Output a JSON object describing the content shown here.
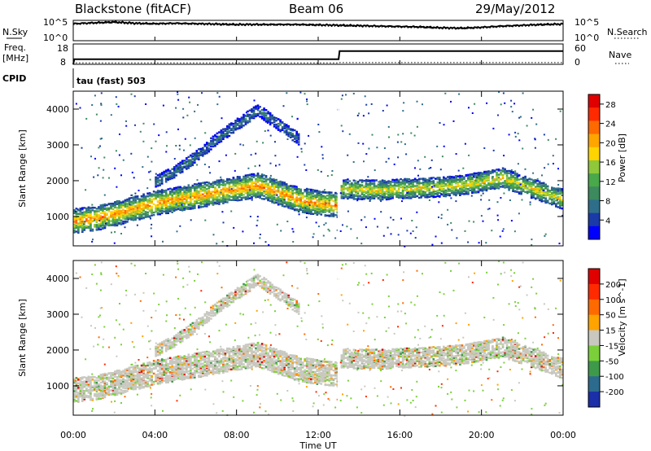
{
  "header": {
    "station": "Blackstone (fitACF)",
    "beam": "Beam 06",
    "date": "29/May/2012"
  },
  "nsky_panel": {
    "left_label": "N.Sky",
    "right_label": "N.Search",
    "tick_top": "10^5",
    "tick_bottom": "10^0"
  },
  "freq_panel": {
    "left_label": "Freq.",
    "left_unit": "[MHz]",
    "right_label": "Nave",
    "left_ticks": [
      "18",
      "8"
    ],
    "right_ticks": [
      "60",
      "0"
    ]
  },
  "cpid": {
    "label": "CPID",
    "program": "tau (fast) 503"
  },
  "chart_data": [
    {
      "type": "line",
      "name": "noise-panel",
      "x": [
        0,
        1,
        2,
        3,
        4,
        5,
        6,
        7,
        8,
        9,
        10,
        11,
        12,
        13,
        14,
        15,
        16,
        17,
        18,
        19,
        20,
        21,
        22,
        23,
        24
      ],
      "series": [
        {
          "values": [
            4.2,
            4.4,
            4.6,
            4.3,
            4.2,
            4.3,
            4.2,
            4.1,
            4.0,
            4.0,
            4.0,
            4.0,
            3.9,
            3.8,
            3.7,
            3.6,
            3.5,
            3.4,
            3.2,
            3.1,
            3.3,
            3.6,
            3.8,
            4.0,
            4.1
          ]
        }
      ],
      "ylim": [
        0,
        5
      ],
      "yscale": "log"
    },
    {
      "type": "line",
      "name": "frequency-panel",
      "x": [
        0,
        0.05,
        13.0,
        13.05,
        24
      ],
      "series": [
        {
          "values": [
            8,
            10.5,
            10.5,
            14.5,
            14.5
          ]
        },
        {
          "values": [
            0,
            4,
            4,
            5,
            5
          ]
        }
      ],
      "ylim": [
        8,
        18
      ],
      "y2lim": [
        0,
        60
      ]
    },
    {
      "type": "heatmap",
      "name": "power",
      "xlabel": "",
      "ylabel": "Slant Range [km]",
      "xlim": [
        0,
        24
      ],
      "ylim": [
        180,
        4500
      ],
      "yticks": [
        1000,
        2000,
        3000,
        4000
      ],
      "colorbar": {
        "label": "Power [dB]",
        "ticks": [
          4,
          8,
          12,
          16,
          20,
          24,
          28
        ],
        "range": [
          0,
          30
        ],
        "colors": [
          "#0000ff",
          "#1a3aa8",
          "#2f6e8a",
          "#3c8a5e",
          "#49a84a",
          "#8fc83a",
          "#ffd400",
          "#ffa500",
          "#ff6a00",
          "#ff2a00",
          "#e00000"
        ]
      },
      "bands": [
        {
          "x": [
            0,
            1,
            2,
            3,
            4,
            5,
            6,
            7,
            8,
            9,
            10,
            11,
            12,
            12.9
          ],
          "y": [
            900,
            960,
            1100,
            1250,
            1400,
            1500,
            1600,
            1700,
            1800,
            1900,
            1700,
            1500,
            1400,
            1350
          ],
          "width": 320,
          "power": 22
        },
        {
          "x": [
            13.1,
            14,
            15,
            16,
            17,
            18,
            19,
            20,
            21,
            22,
            23,
            24
          ],
          "y": [
            1800,
            1780,
            1760,
            1800,
            1820,
            1850,
            1900,
            2000,
            2100,
            1900,
            1700,
            1500
          ],
          "width": 260,
          "power": 18
        },
        {
          "x": [
            4,
            5,
            6,
            7,
            8,
            9,
            10,
            11
          ],
          "y": [
            2000,
            2300,
            2700,
            3200,
            3600,
            4000,
            3600,
            3200
          ],
          "width": 150,
          "power": 8
        }
      ]
    },
    {
      "type": "heatmap",
      "name": "velocity",
      "xlabel": "Time UT",
      "ylabel": "Slant Range [km]",
      "xlim": [
        0,
        24
      ],
      "ylim": [
        180,
        4500
      ],
      "yticks": [
        1000,
        2000,
        3000,
        4000
      ],
      "xticks": [
        "00:00",
        "04:00",
        "08:00",
        "12:00",
        "16:00",
        "20:00",
        "00:00"
      ],
      "colorbar": {
        "label": "Velocity [m s^-1]",
        "ticks": [
          200,
          100,
          50,
          15,
          -15,
          -50,
          -100,
          -200
        ],
        "colors": [
          "#1b2fa8",
          "#2c6b8e",
          "#3e9a4a",
          "#7bd03a",
          "#c8c8c0",
          "#ffa300",
          "#ff6a00",
          "#ff2a00",
          "#e00000"
        ]
      }
    }
  ]
}
